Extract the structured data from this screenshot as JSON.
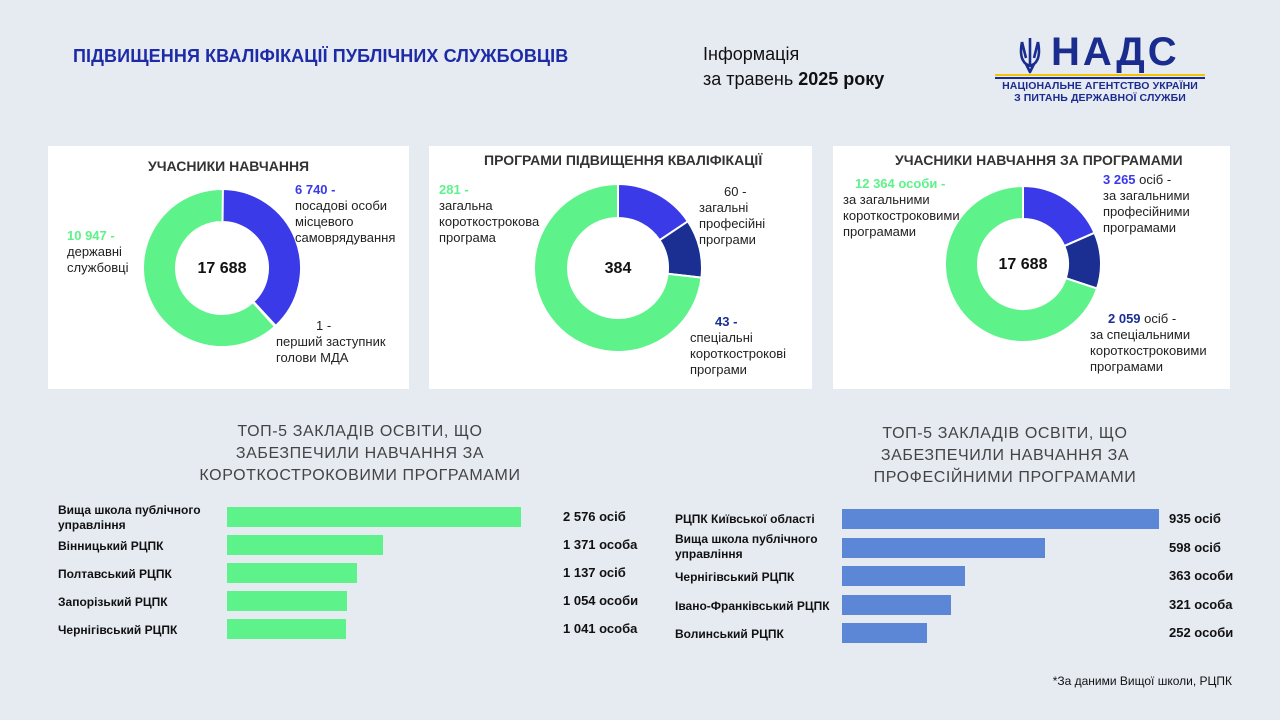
{
  "header": {
    "title": "ПІДВИЩЕННЯ КВАЛІФІКАЦІЇ ПУБЛІЧНИХ СЛУЖБОВЦІВ",
    "info_line1": "Інформація",
    "info_line2_prefix": "за травень",
    "info_line2_bold": "2025 року"
  },
  "logo": {
    "name": "НАДС",
    "line1": "НАЦІОНАЛЬНЕ АГЕНТСТВО УКРАЇНИ",
    "line2": "З ПИТАНЬ ДЕРЖАВНОЇ СЛУЖБИ",
    "icon": "trident-icon"
  },
  "colors": {
    "green": "#5ef28a",
    "blue": "#3a3ae8",
    "navy": "#1b2f93",
    "bar_green": "#5ef28a",
    "bar_blue": "#5b87d6",
    "title_blue": "#1d2ba6"
  },
  "chart_data": [
    {
      "type": "pie",
      "title": "УЧАСНИКИ НАВЧАННЯ",
      "center_label": "17 688",
      "slices": [
        {
          "value": 6740,
          "value_label": "6 740",
          "label": "посадові особи місцевого самоврядування",
          "color": "#3a3ae8"
        },
        {
          "value": 1,
          "value_label": "1",
          "label": "перший заступник голови МДА",
          "color": "#5b87d6"
        },
        {
          "value": 10947,
          "value_label": "10 947",
          "label": "державні службовці",
          "color": "#5ef28a"
        }
      ]
    },
    {
      "type": "pie",
      "title": "ПРОГРАМИ ПІДВИЩЕННЯ КВАЛІФІКАЦІЇ",
      "center_label": "384",
      "slices": [
        {
          "value": 60,
          "value_label": "60",
          "label": "загальні професійні програми",
          "color": "#3a3ae8"
        },
        {
          "value": 43,
          "value_label": "43",
          "label": "спеціальні короткострокові програми",
          "color": "#1b2f93"
        },
        {
          "value": 281,
          "value_label": "281",
          "label": "загальна короткострокова програма",
          "color": "#5ef28a"
        }
      ]
    },
    {
      "type": "pie",
      "title": "УЧАСНИКИ НАВЧАННЯ ЗА ПРОГРАМАМИ",
      "center_label": "17 688",
      "slices": [
        {
          "value": 3265,
          "value_label": "3 265",
          "unit": "осіб",
          "label": "за загальними професійними програмами",
          "color": "#3a3ae8"
        },
        {
          "value": 2059,
          "value_label": "2 059",
          "unit": "осіб",
          "label": "за спеціальними короткостроковими програмами",
          "color": "#1b2f93"
        },
        {
          "value": 12364,
          "value_label": "12 364 особи",
          "label": "за загальними короткостроковими програмами",
          "color": "#5ef28a"
        }
      ]
    },
    {
      "type": "bar",
      "orientation": "horizontal",
      "title": "ТОП-5 ЗАКЛАДІВ ОСВІТИ, ЩО ЗАБЕЗПЕЧИЛИ НАВЧАННЯ ЗА КОРОТКОСТРОКОВИМИ ПРОГРАМАМИ",
      "categories": [
        "Вища школа публічного управління",
        "Вінницький РЦПК",
        "Полтавський РЦПК",
        "Запорізький РЦПК",
        "Чернігівський РЦПК"
      ],
      "values": [
        2576,
        1371,
        1137,
        1054,
        1041
      ],
      "value_labels": [
        "2 576 осіб",
        "1 371 особа",
        "1 137 осіб",
        "1 054 особи",
        "1 041 особа"
      ],
      "color": "#5ef28a"
    },
    {
      "type": "bar",
      "orientation": "horizontal",
      "title": "ТОП-5 ЗАКЛАДІВ ОСВІТИ, ЩО ЗАБЕЗПЕЧИЛИ НАВЧАННЯ ЗА ПРОФЕСІЙНИМИ ПРОГРАМАМИ",
      "categories": [
        "РЦПК Київської області",
        "Вища школа публічного управління",
        "Чернігівський РЦПК",
        "Івано-Франківський РЦПК",
        "Волинський РЦПК"
      ],
      "values": [
        935,
        598,
        363,
        321,
        252
      ],
      "value_labels": [
        "935 осіб",
        "598 осіб",
        "363 особи",
        "321 особа",
        "252 особи"
      ],
      "color": "#5b87d6"
    }
  ],
  "footnote": "*За даними Вищої школи, РЦПК"
}
